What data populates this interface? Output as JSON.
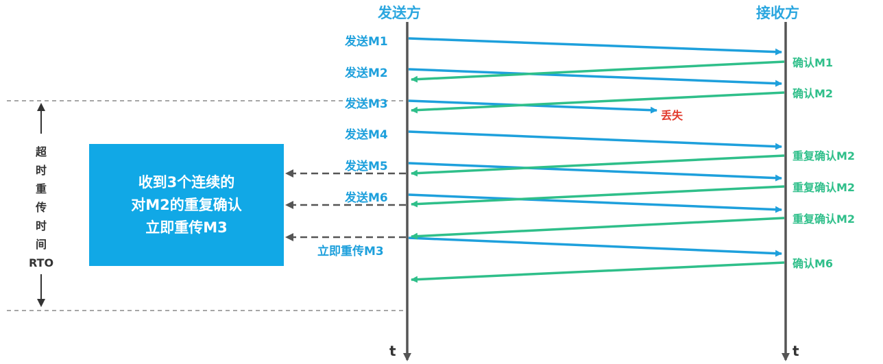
{
  "headers": {
    "sender": "发送方",
    "receiver": "接收方"
  },
  "time_label": "t",
  "sends": [
    {
      "label": "发送M1"
    },
    {
      "label": "发送M2"
    },
    {
      "label": "发送M3"
    },
    {
      "label": "发送M4"
    },
    {
      "label": "发送M5"
    },
    {
      "label": "发送M6"
    },
    {
      "label": "立即重传M3"
    }
  ],
  "acks": [
    {
      "label": "确认M1"
    },
    {
      "label": "确认M2"
    },
    {
      "label": "重复确认M2"
    },
    {
      "label": "重复确认M2"
    },
    {
      "label": "重复确认M2"
    },
    {
      "label": "确认M6"
    }
  ],
  "lost_label": "丢失",
  "rto_chars": [
    "超",
    "时",
    "重",
    "传",
    "时",
    "间",
    "RTO"
  ],
  "note_lines": [
    "收到3个连续的",
    "对M2的重复确认",
    "立即重传M3"
  ],
  "colors": {
    "send": "#1ea0dc",
    "ack": "#2fbf8a",
    "lost": "#e23b2e",
    "note_bg": "#11a8e6",
    "axis": "#555555"
  }
}
